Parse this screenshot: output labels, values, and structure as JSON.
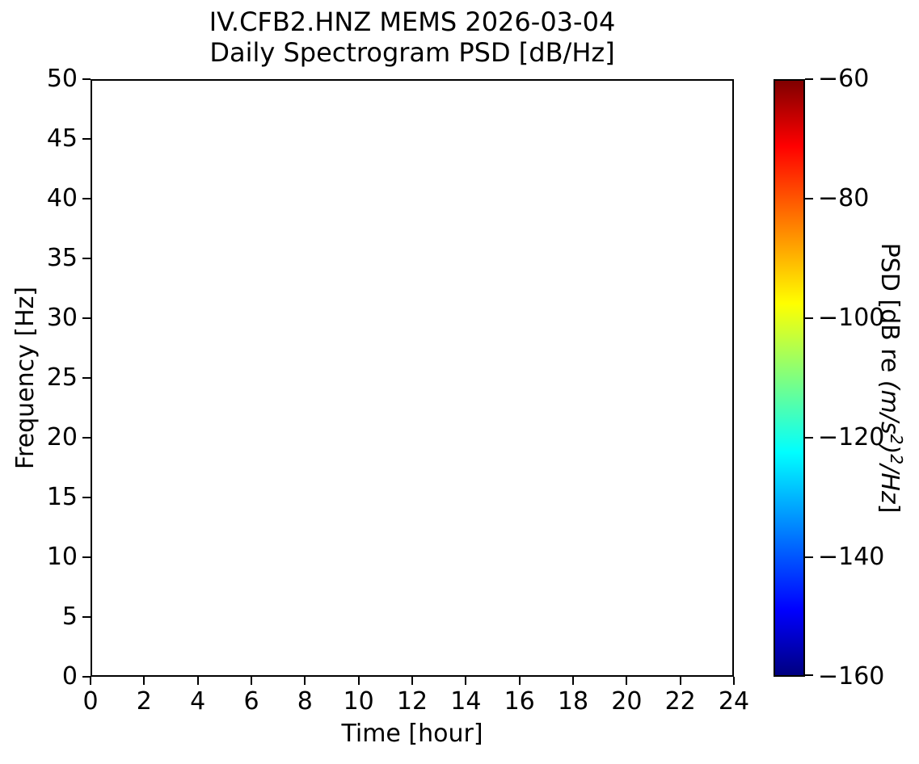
{
  "figure": {
    "background": "#ffffff",
    "text_color": "#000000",
    "axes_edge_color": "#000000"
  },
  "chart_data": {
    "type": "heatmap",
    "title_line1": "IV.CFB2.HNZ MEMS 2026-03-04",
    "title_line2": "Daily Spectrogram PSD [dB/Hz]",
    "xlabel": "Time [hour]",
    "ylabel": "Frequency [Hz]",
    "xlim": [
      0,
      24
    ],
    "ylim": [
      0,
      50
    ],
    "x_ticks": [
      0,
      2,
      4,
      6,
      8,
      10,
      12,
      14,
      16,
      18,
      20,
      22,
      24
    ],
    "x_tick_labels": [
      "0",
      "2",
      "4",
      "6",
      "8",
      "10",
      "12",
      "14",
      "16",
      "18",
      "20",
      "22",
      "24"
    ],
    "y_ticks": [
      0,
      5,
      10,
      15,
      20,
      25,
      30,
      35,
      40,
      45,
      50
    ],
    "y_tick_labels": [
      "0",
      "5",
      "10",
      "15",
      "20",
      "25",
      "30",
      "35",
      "40",
      "45",
      "50"
    ],
    "grid": false,
    "values": [],
    "colorbar": {
      "label_full": "PSD [dB re (m/s²)²/Hz]",
      "label_prefix": "PSD [dB re ",
      "label_math_a": "(m/s",
      "label_sup_a": "2",
      "label_math_b": ")",
      "label_sup_b": "2",
      "label_math_c": "/Hz",
      "label_close": "]",
      "vmin": -160,
      "vmax": -60,
      "ticks": [
        -60,
        -80,
        -100,
        -120,
        -140,
        -160
      ],
      "tick_labels": [
        "−60",
        "−80",
        "−100",
        "−120",
        "−140",
        "−160"
      ],
      "colormap": "jet",
      "gradient_top_to_bottom": [
        {
          "pos": 0.0,
          "color": "#800000"
        },
        {
          "pos": 0.11,
          "color": "#ff0000"
        },
        {
          "pos": 0.375,
          "color": "#ffff00"
        },
        {
          "pos": 0.625,
          "color": "#00ffff"
        },
        {
          "pos": 0.89,
          "color": "#0000ff"
        },
        {
          "pos": 1.0,
          "color": "#000080"
        }
      ]
    }
  }
}
